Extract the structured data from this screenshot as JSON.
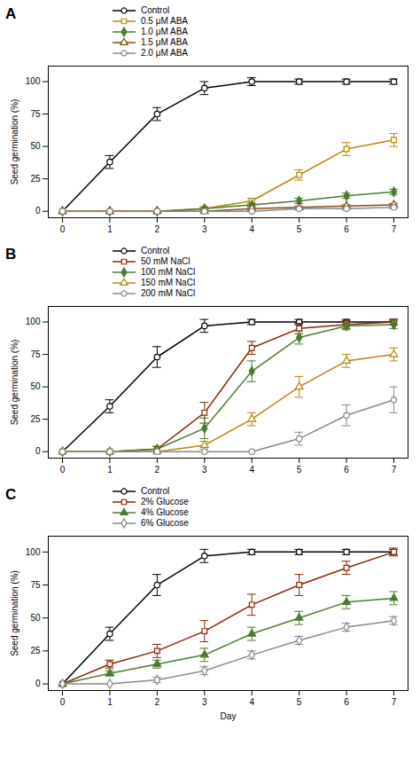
{
  "chart_data": [
    {
      "type": "line",
      "title": "A",
      "x": [
        0,
        1,
        2,
        3,
        4,
        5,
        6,
        7
      ],
      "xlim": [
        -0.3,
        7.3
      ],
      "xticks": [
        0,
        1,
        2,
        3,
        4,
        5,
        6,
        7
      ],
      "ylim": [
        -5,
        112
      ],
      "yticks": [
        0,
        25,
        50,
        75,
        100
      ],
      "ylabel": "Seed germination (%)",
      "legend": "top",
      "grid": false,
      "series": [
        {
          "name": "Control",
          "color": "#000000",
          "marker": "circle-open",
          "values": [
            0,
            38,
            75,
            95,
            100,
            100,
            100,
            100
          ],
          "errors": [
            0,
            5,
            5,
            5,
            3,
            2,
            2,
            2
          ]
        },
        {
          "name": "0.5 μM ABA",
          "color": "#b8860b",
          "marker": "square-open",
          "values": [
            0,
            0,
            0,
            2,
            8,
            28,
            48,
            55
          ],
          "errors": [
            0,
            0,
            0,
            1,
            2,
            4,
            5,
            5
          ]
        },
        {
          "name": "1.0 μM ABA",
          "color": "#4a7c2f",
          "marker": "diamond-filled",
          "values": [
            0,
            0,
            0,
            2,
            5,
            8,
            12,
            15
          ],
          "errors": [
            0,
            0,
            0,
            1,
            1,
            2,
            2,
            2
          ]
        },
        {
          "name": "1.5 μM ABA",
          "color": "#8b4513",
          "marker": "triangle-open",
          "values": [
            0,
            0,
            0,
            0,
            2,
            3,
            4,
            5
          ],
          "errors": [
            0,
            0,
            0,
            0,
            1,
            1,
            1,
            1
          ]
        },
        {
          "name": "2.0 μM ABA",
          "color": "#888888",
          "marker": "circle-open",
          "values": [
            0,
            0,
            0,
            0,
            0,
            2,
            2,
            3
          ],
          "errors": [
            0,
            0,
            0,
            0,
            0,
            1,
            1,
            1
          ]
        }
      ]
    },
    {
      "type": "line",
      "title": "B",
      "x": [
        0,
        1,
        2,
        3,
        4,
        5,
        6,
        7
      ],
      "xlim": [
        -0.3,
        7.3
      ],
      "xticks": [
        0,
        1,
        2,
        3,
        4,
        5,
        6,
        7
      ],
      "ylim": [
        -5,
        112
      ],
      "yticks": [
        0,
        25,
        50,
        75,
        100
      ],
      "ylabel": "Seed germination (%)",
      "legend": "top",
      "grid": false,
      "series": [
        {
          "name": "Control",
          "color": "#000000",
          "marker": "circle-open",
          "values": [
            0,
            35,
            73,
            97,
            100,
            100,
            100,
            100
          ],
          "errors": [
            0,
            5,
            8,
            5,
            2,
            2,
            2,
            2
          ]
        },
        {
          "name": "50 mM NaCl",
          "color": "#8b2500",
          "marker": "square-open",
          "values": [
            0,
            0,
            2,
            30,
            80,
            95,
            98,
            100
          ],
          "errors": [
            0,
            0,
            2,
            8,
            5,
            4,
            3,
            2
          ]
        },
        {
          "name": "100 mM NaCl",
          "color": "#4a7c2f",
          "marker": "diamond-filled",
          "values": [
            0,
            0,
            2,
            18,
            62,
            88,
            97,
            98
          ],
          "errors": [
            0,
            0,
            2,
            8,
            8,
            5,
            3,
            3
          ]
        },
        {
          "name": "150 mM NaCl",
          "color": "#b8860b",
          "marker": "triangle-open",
          "values": [
            0,
            0,
            0,
            5,
            25,
            50,
            70,
            75
          ],
          "errors": [
            0,
            0,
            0,
            3,
            5,
            8,
            5,
            5
          ]
        },
        {
          "name": "200 mM NaCl",
          "color": "#888888",
          "marker": "circle-open",
          "values": [
            0,
            0,
            0,
            0,
            0,
            10,
            28,
            40
          ],
          "errors": [
            0,
            0,
            0,
            0,
            0,
            5,
            8,
            10
          ]
        }
      ]
    },
    {
      "type": "line",
      "title": "C",
      "x": [
        0,
        1,
        2,
        3,
        4,
        5,
        6,
        7
      ],
      "xlim": [
        -0.3,
        7.3
      ],
      "xticks": [
        0,
        1,
        2,
        3,
        4,
        5,
        6,
        7
      ],
      "ylim": [
        -5,
        112
      ],
      "yticks": [
        0,
        25,
        50,
        75,
        100
      ],
      "xlabel": "Day",
      "ylabel": "Seed germination (%)",
      "legend": "top",
      "grid": false,
      "series": [
        {
          "name": "Control",
          "color": "#000000",
          "marker": "circle-open",
          "values": [
            0,
            38,
            75,
            97,
            100,
            100,
            100,
            100
          ],
          "errors": [
            0,
            5,
            8,
            5,
            2,
            2,
            2,
            2
          ]
        },
        {
          "name": "2% Glucose",
          "color": "#8b2500",
          "marker": "square-open",
          "values": [
            0,
            15,
            25,
            40,
            60,
            75,
            88,
            100
          ],
          "errors": [
            0,
            3,
            5,
            8,
            8,
            8,
            5,
            3
          ]
        },
        {
          "name": "4% Glucose",
          "color": "#4a7c2f",
          "marker": "triangle-filled",
          "values": [
            0,
            8,
            15,
            22,
            38,
            50,
            62,
            65
          ],
          "errors": [
            0,
            2,
            3,
            5,
            5,
            5,
            5,
            5
          ]
        },
        {
          "name": "6% Glucose",
          "color": "#888888",
          "marker": "diamond-open",
          "values": [
            0,
            0,
            3,
            10,
            22,
            33,
            43,
            48
          ],
          "errors": [
            0,
            0,
            2,
            3,
            3,
            3,
            3,
            3
          ]
        }
      ]
    }
  ]
}
